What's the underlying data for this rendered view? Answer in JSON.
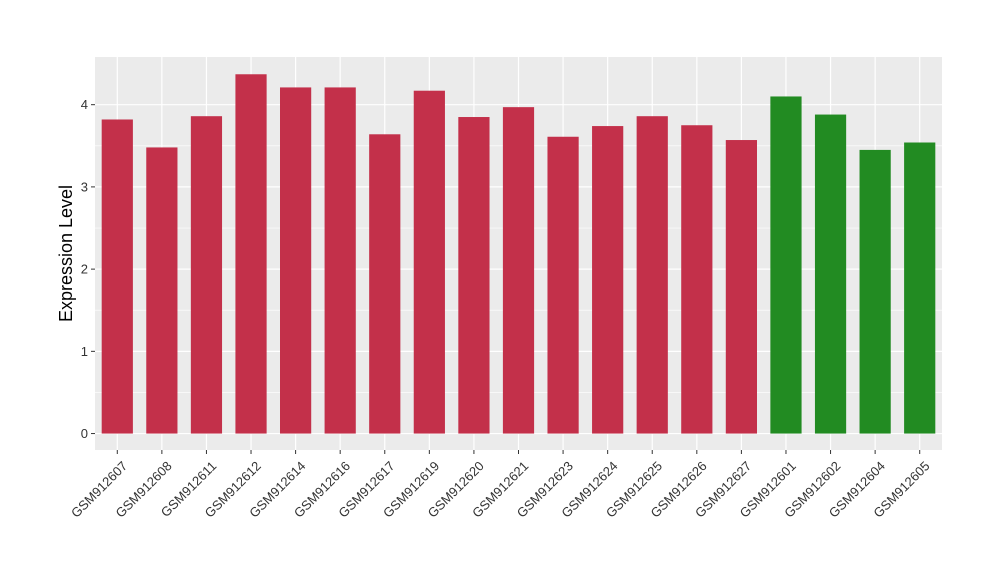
{
  "chart_data": {
    "type": "bar",
    "title": "",
    "xlabel": "",
    "ylabel": "Expression Level",
    "ylim": [
      -0.2,
      4.58
    ],
    "yticks": [
      0,
      1,
      2,
      3,
      4
    ],
    "grid": true,
    "categories": [
      "GSM912607",
      "GSM912608",
      "GSM912611",
      "GSM912612",
      "GSM912614",
      "GSM912616",
      "GSM912617",
      "GSM912619",
      "GSM912620",
      "GSM912621",
      "GSM912623",
      "GSM912624",
      "GSM912625",
      "GSM912626",
      "GSM912627",
      "GSM912601",
      "GSM912602",
      "GSM912604",
      "GSM912605"
    ],
    "values": [
      3.82,
      3.48,
      3.86,
      4.37,
      4.21,
      4.21,
      3.64,
      4.17,
      3.85,
      3.97,
      3.61,
      3.74,
      3.86,
      3.75,
      3.57,
      4.1,
      3.88,
      3.45,
      3.54
    ],
    "groups": [
      "A",
      "A",
      "A",
      "A",
      "A",
      "A",
      "A",
      "A",
      "A",
      "A",
      "A",
      "A",
      "A",
      "A",
      "A",
      "B",
      "B",
      "B",
      "B"
    ],
    "group_colors": {
      "A": "#c3304a",
      "B": "#228b22"
    },
    "panel_color": "#ebebeb",
    "grid_color": "#ffffff"
  }
}
